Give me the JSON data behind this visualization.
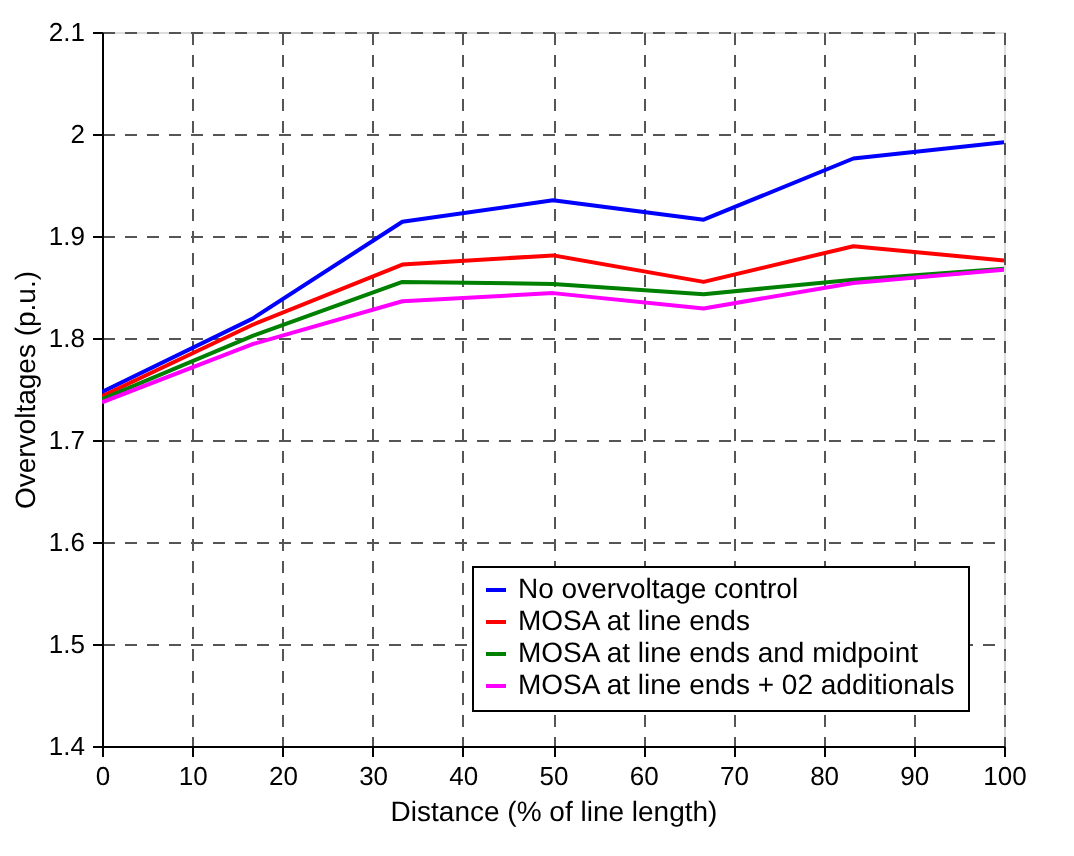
{
  "chart_data": {
    "type": "line",
    "xlabel": "Distance (% of line length)",
    "ylabel": "Overvoltages (p.u.)",
    "x": [
      0,
      16.7,
      33.3,
      50,
      66.7,
      83.3,
      100
    ],
    "series": [
      {
        "name": "No overvoltage control",
        "color": "#0000ff",
        "values": [
          1.747,
          1.819,
          1.914,
          1.935,
          1.916,
          1.976,
          1.992
        ]
      },
      {
        "name": "MOSA at line ends",
        "color": "#ff0000",
        "values": [
          1.743,
          1.813,
          1.872,
          1.881,
          1.855,
          1.89,
          1.876
        ]
      },
      {
        "name": "MOSA at line ends and midpoint",
        "color": "#008000",
        "values": [
          1.74,
          1.802,
          1.855,
          1.853,
          1.843,
          1.857,
          1.868
        ]
      },
      {
        "name": "MOSA at line ends + 02 additionals",
        "color": "#ff00ff",
        "values": [
          1.737,
          1.794,
          1.836,
          1.844,
          1.829,
          1.854,
          1.867
        ]
      }
    ],
    "xlim": [
      0,
      100
    ],
    "xticks": [
      0,
      10,
      20,
      30,
      40,
      50,
      60,
      70,
      80,
      90,
      100
    ],
    "ylim": [
      1.4,
      2.1
    ],
    "yticks": [
      1.4,
      1.5,
      1.6,
      1.7,
      1.8,
      1.9,
      2,
      2.1
    ],
    "grid": true,
    "legend": "bottom right",
    "marker": "none",
    "line_style": "solid"
  }
}
